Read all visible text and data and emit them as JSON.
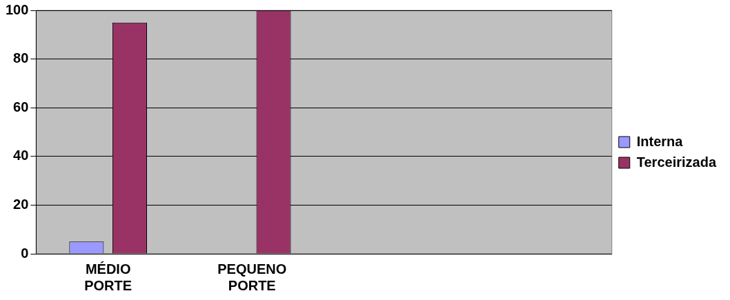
{
  "chart_data": {
    "type": "bar",
    "categories": [
      "MÉDIO PORTE",
      "PEQUENO PORTE",
      null,
      null
    ],
    "series": [
      {
        "name": "Interna",
        "color": "#9999ff",
        "values": [
          5,
          null,
          null,
          null
        ]
      },
      {
        "name": "Terceirizada",
        "color": "#993366",
        "values": [
          95,
          100,
          null,
          null
        ]
      }
    ],
    "ylim": [
      0,
      100
    ],
    "yticks": [
      0,
      20,
      40,
      60,
      80,
      100
    ],
    "grid": "y",
    "legend": "right"
  }
}
